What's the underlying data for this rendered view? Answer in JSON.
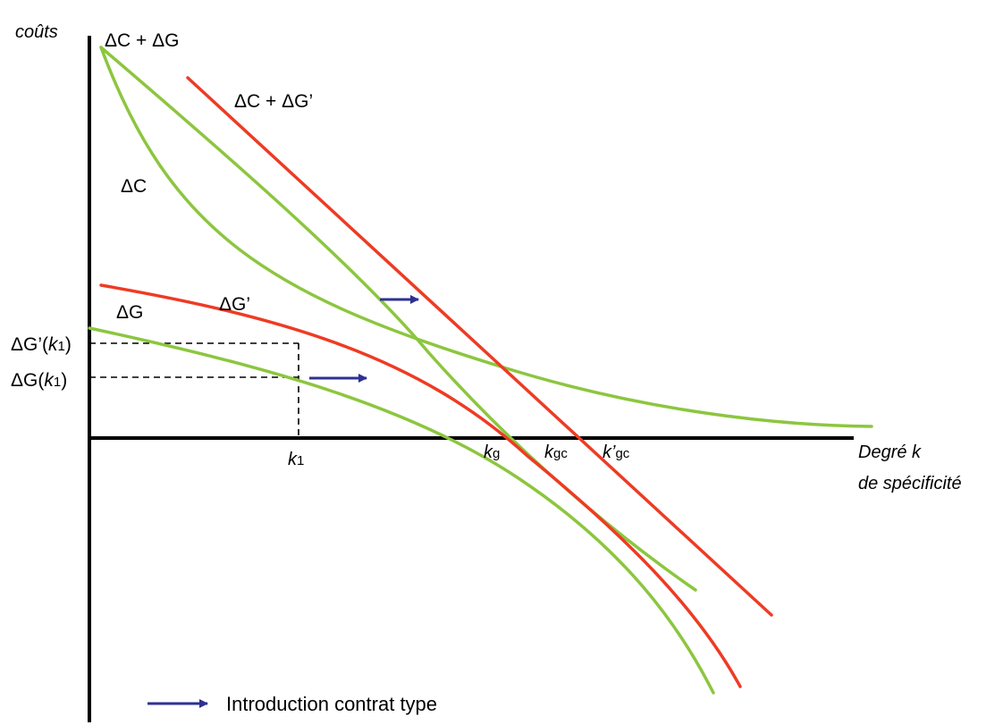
{
  "axes": {
    "y_label": "coûts",
    "x_label_line1": "Degré k",
    "x_label_line2": "de spécificité"
  },
  "curves": {
    "dc_plus_dg": "ΔC + ΔG",
    "dc_plus_dg_prime": "ΔC + ΔG’",
    "dc": "ΔC",
    "dg": "ΔG",
    "dg_prime": "ΔG’"
  },
  "y_ticks": {
    "dg_prime_k1_prefix": "ΔG’(",
    "dg_prime_k1_var": "k",
    "dg_prime_k1_sub": "1",
    "dg_prime_k1_suffix": ")",
    "dg_k1_prefix": "ΔG(",
    "dg_k1_var": "k",
    "dg_k1_sub": "1",
    "dg_k1_suffix": ")"
  },
  "x_ticks": {
    "k1_var": "k",
    "k1_sub": "1",
    "kg_var": "k",
    "kg_sub": "g",
    "kgc_var": "k",
    "kgc_sub": "gc",
    "kgc_prime_var": "k’",
    "kgc_prime_sub": "gc"
  },
  "legend": {
    "arrow_label": "Introduction contrat type"
  },
  "colors": {
    "green": "#8cc63f",
    "red": "#ee3b24",
    "arrow": "#2e3192"
  }
}
